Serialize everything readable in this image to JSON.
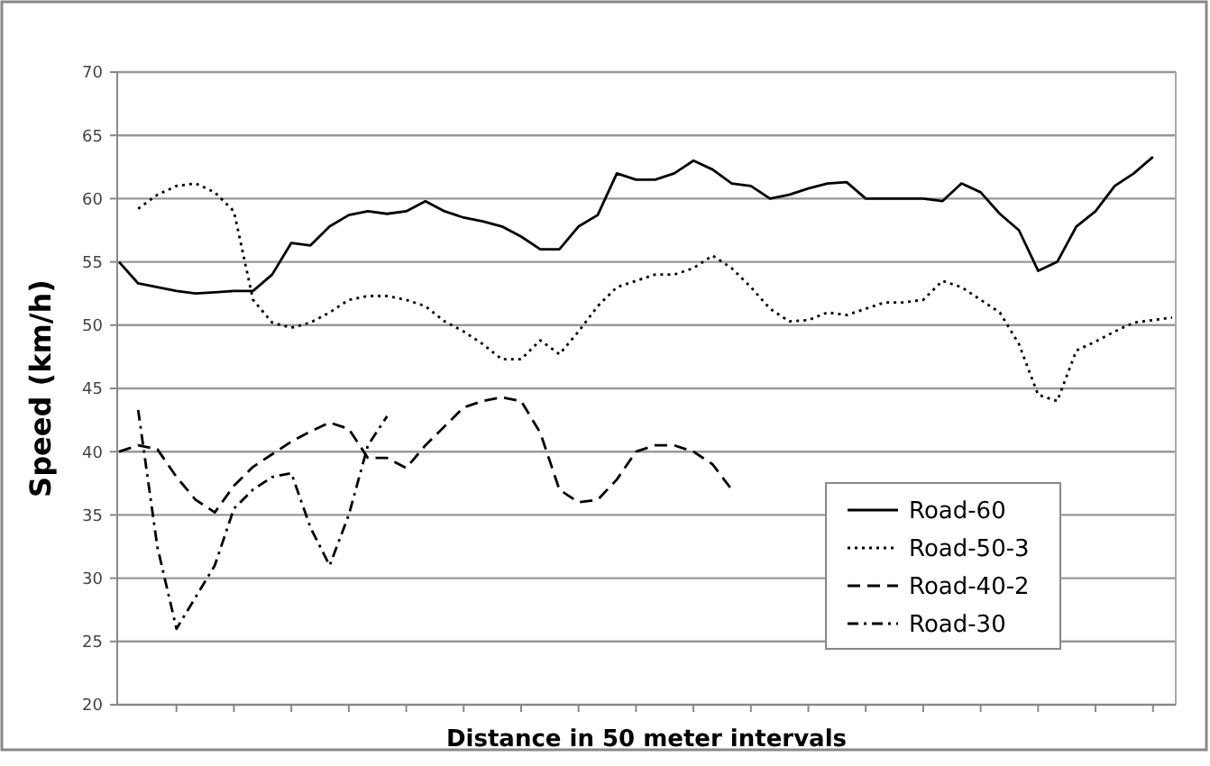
{
  "chart_data": {
    "type": "line",
    "xlabel": "Distance in 50 meter intervals",
    "ylabel": "Speed (km/h)",
    "categories": [
      null,
      null,
      null,
      null,
      null,
      null,
      null,
      null,
      null,
      null,
      null,
      null,
      null,
      null,
      null,
      null,
      null,
      null,
      null,
      null,
      null,
      null,
      null,
      null,
      null,
      null,
      null,
      null,
      null,
      null,
      null,
      null,
      null,
      null,
      null,
      null,
      null,
      null,
      null,
      null,
      null,
      null,
      null,
      null,
      null,
      null,
      null,
      null,
      null,
      null,
      null,
      null,
      null,
      null,
      null,
      null
    ],
    "series": [
      {
        "name": "Road-60",
        "color": "#000000",
        "line_style": "solid",
        "values": [
          55,
          53.3,
          53,
          52.7,
          52.5,
          52.6,
          52.7,
          52.7,
          54,
          56.5,
          56.3,
          57.8,
          58.7,
          59,
          58.8,
          59,
          59.8,
          59,
          58.5,
          58.2,
          57.8,
          57,
          56,
          56,
          57.8,
          58.7,
          62,
          61.5,
          61.5,
          62,
          63,
          62.3,
          61.2,
          61,
          60,
          60.3,
          60.8,
          61.2,
          61.3,
          60,
          60,
          60,
          60,
          59.8,
          61.2,
          60.5,
          58.8,
          57.5,
          54.3,
          55,
          57.8,
          59,
          61,
          62,
          63.3,
          null
        ]
      },
      {
        "name": "Road-50-3",
        "color": "#000000",
        "line_style": "dotted",
        "values": [
          null,
          59.2,
          60.3,
          61,
          61.2,
          60.5,
          59,
          52,
          50.2,
          49.8,
          50.2,
          51,
          52,
          52.3,
          52.3,
          52,
          51.5,
          50.3,
          49.5,
          48.5,
          47.3,
          47.3,
          48.8,
          47.7,
          49.5,
          51.5,
          53,
          53.5,
          54,
          54,
          54.5,
          55.5,
          54.5,
          53,
          51.3,
          50.3,
          50.4,
          51,
          50.8,
          51.3,
          51.8,
          51.8,
          52,
          53.5,
          53,
          52,
          51,
          48.5,
          44.5,
          44,
          48,
          48.7,
          49.5,
          50.2,
          50.4,
          50.6
        ]
      },
      {
        "name": "Road-40-2",
        "color": "#000000",
        "line_style": "dashed",
        "values": [
          40,
          40.5,
          40.2,
          38,
          36.2,
          35.2,
          37.3,
          38.8,
          39.8,
          40.8,
          41.6,
          42.3,
          41.8,
          39.5,
          39.5,
          38.7,
          40.5,
          42,
          43.5,
          44,
          44.3,
          44,
          41.5,
          37,
          36,
          36.2,
          37.8,
          40,
          40.5,
          40.5,
          40,
          39,
          37,
          null,
          null,
          null,
          null,
          null,
          null,
          null,
          null,
          null,
          null,
          null,
          null,
          null,
          null,
          null,
          null,
          null,
          null,
          null,
          null,
          null,
          null,
          null
        ]
      },
      {
        "name": "Road-30",
        "color": "#000000",
        "line_style": "dashdot",
        "values": [
          null,
          43.3,
          32.5,
          26,
          28.5,
          31,
          35.5,
          37,
          38,
          38.3,
          34,
          31,
          35,
          40.5,
          42.8,
          null,
          null,
          null,
          null,
          null,
          null,
          null,
          null,
          null,
          null,
          null,
          null,
          null,
          null,
          null,
          null,
          null,
          null,
          null,
          null,
          null,
          null,
          null,
          null,
          null,
          null,
          null,
          null,
          null,
          null,
          null,
          null,
          null,
          null,
          null,
          null,
          null,
          null,
          null,
          null,
          null
        ]
      }
    ],
    "ylim": [
      20,
      70
    ],
    "yticks": [
      20,
      25,
      30,
      35,
      40,
      45,
      50,
      55,
      60,
      65,
      70
    ],
    "grid": "y",
    "legend": "bottom right",
    "marker": "none",
    "tick_labels": "y"
  }
}
